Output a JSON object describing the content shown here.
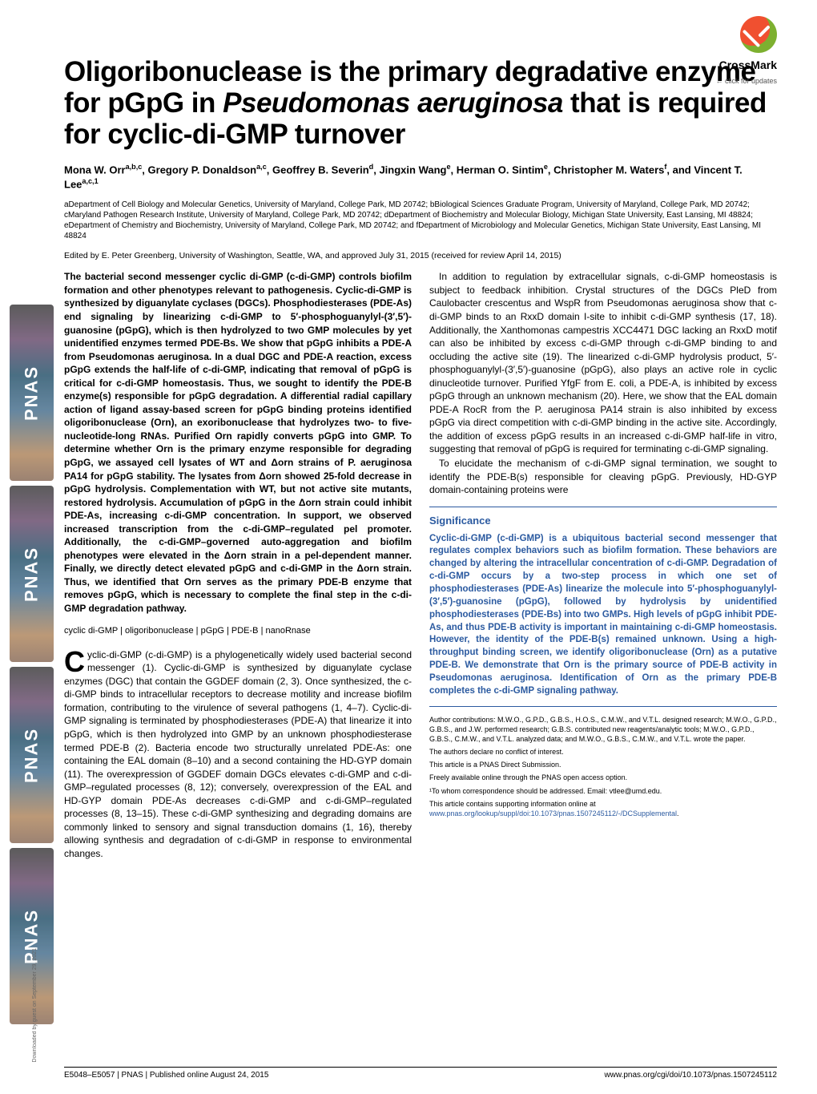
{
  "crossmark": {
    "label": "CrossMark",
    "sub": "← click for updates"
  },
  "title_plain": "Oligoribonuclease is the primary degradative enzyme for pGpG in ",
  "title_italic": "Pseudomonas aeruginosa",
  "title_tail": " that is required for cyclic-di-GMP turnover",
  "authors": {
    "a1_name": "Mona W. Orr",
    "a1_sup": "a,b,c",
    "a2_name": "Gregory P. Donaldson",
    "a2_sup": "a,c",
    "a3_name": "Geoffrey B. Severin",
    "a3_sup": "d",
    "a4_name": "Jingxin Wang",
    "a4_sup": "e",
    "a5_name": "Herman O. Sintim",
    "a5_sup": "e",
    "a6_name": "Christopher M. Waters",
    "a6_sup": "f",
    "a7_name": "Vincent T. Lee",
    "a7_sup": "a,c,1",
    "sep": ", ",
    "and": ", and "
  },
  "affiliations": "aDepartment of Cell Biology and Molecular Genetics, University of Maryland, College Park, MD 20742; bBiological Sciences Graduate Program, University of Maryland, College Park, MD 20742; cMaryland Pathogen Research Institute, University of Maryland, College Park, MD 20742; dDepartment of Biochemistry and Molecular Biology, Michigan State University, East Lansing, MI 48824; eDepartment of Chemistry and Biochemistry, University of Maryland, College Park, MD 20742; and fDepartment of Microbiology and Molecular Genetics, Michigan State University, East Lansing, MI 48824",
  "edited": "Edited by E. Peter Greenberg, University of Washington, Seattle, WA, and approved July 31, 2015 (received for review April 14, 2015)",
  "abstract": "The bacterial second messenger cyclic di-GMP (c-di-GMP) controls biofilm formation and other phenotypes relevant to pathogenesis. Cyclic-di-GMP is synthesized by diguanylate cyclases (DGCs). Phosphodiesterases (PDE-As) end signaling by linearizing c-di-GMP to 5′-phosphoguanylyl-(3′,5′)-guanosine (pGpG), which is then hydrolyzed to two GMP molecules by yet unidentified enzymes termed PDE-Bs. We show that pGpG inhibits a PDE-A from Pseudomonas aeruginosa. In a dual DGC and PDE-A reaction, excess pGpG extends the half-life of c-di-GMP, indicating that removal of pGpG is critical for c-di-GMP homeostasis. Thus, we sought to identify the PDE-B enzyme(s) responsible for pGpG degradation. A differential radial capillary action of ligand assay-based screen for pGpG binding proteins identified oligoribonuclease (Orn), an exoribonuclease that hydrolyzes two- to five-nucleotide-long RNAs. Purified Orn rapidly converts pGpG into GMP. To determine whether Orn is the primary enzyme responsible for degrading pGpG, we assayed cell lysates of WT and Δorn strains of P. aeruginosa PA14 for pGpG stability. The lysates from Δorn showed 25-fold decrease in pGpG hydrolysis. Complementation with WT, but not active site mutants, restored hydrolysis. Accumulation of pGpG in the Δorn strain could inhibit PDE-As, increasing c-di-GMP concentration. In support, we observed increased transcription from the c-di-GMP–regulated pel promoter. Additionally, the c-di-GMP–governed auto-aggregation and biofilm phenotypes were elevated in the Δorn strain in a pel-dependent manner. Finally, we directly detect elevated pGpG and c-di-GMP in the Δorn strain. Thus, we identified that Orn serves as the primary PDE-B enzyme that removes pGpG, which is necessary to complete the final step in the c-di-GMP degradation pathway.",
  "keywords": "cyclic di-GMP | oligoribonuclease | pGpG | PDE-B | nanoRnase",
  "intro_p1": "Cyclic-di-GMP (c-di-GMP) is a phylogenetically widely used bacterial second messenger (1). Cyclic-di-GMP is synthesized by diguanylate cyclase enzymes (DGC) that contain the GGDEF domain (2, 3). Once synthesized, the c-di-GMP binds to intracellular receptors to decrease motility and increase biofilm formation, contributing to the virulence of several pathogens (1, 4–7). Cyclic-di-GMP signaling is terminated by phosphodiesterases (PDE-A) that linearize it into pGpG, which is then hydrolyzed into GMP by an unknown phosphodiesterase termed PDE-B (2). Bacteria encode two structurally unrelated PDE-As: one containing the EAL domain (8–10) and a second containing the HD-GYP domain (11). The overexpression of GGDEF domain DGCs elevates c-di-GMP and c-di-GMP–regulated processes (8, 12); conversely, overexpression of the EAL and HD-GYP domain PDE-As decreases c-di-GMP and c-di-GMP–regulated processes (8, 13–15). These c-di-GMP synthesizing and degrading domains are commonly linked to sensory and signal transduction domains (1, 16), thereby allowing synthesis and degradation of c-di-GMP in response to environmental changes.",
  "right_p1": "In addition to regulation by extracellular signals, c-di-GMP homeostasis is subject to feedback inhibition. Crystal structures of the DGCs PleD from Caulobacter crescentus and WspR from Pseudomonas aeruginosa show that c-di-GMP binds to an RxxD domain I-site to inhibit c-di-GMP synthesis (17, 18). Additionally, the Xanthomonas campestris XCC4471 DGC lacking an RxxD motif can also be inhibited by excess c-di-GMP through c-di-GMP binding to and occluding the active site (19). The linearized c-di-GMP hydrolysis product, 5′-phosphoguanylyl-(3′,5′)-guanosine (pGpG), also plays an active role in cyclic dinucleotide turnover. Purified YfgF from E. coli, a PDE-A, is inhibited by excess pGpG through an unknown mechanism (20). Here, we show that the EAL domain PDE-A RocR from the P. aeruginosa PA14 strain is also inhibited by excess pGpG via direct competition with c-di-GMP binding in the active site. Accordingly, the addition of excess pGpG results in an increased c-di-GMP half-life in vitro, suggesting that removal of pGpG is required for terminating c-di-GMP signaling.",
  "right_p2": "To elucidate the mechanism of c-di-GMP signal termination, we sought to identify the PDE-B(s) responsible for cleaving pGpG. Previously, HD-GYP domain-containing proteins were",
  "significance_title": "Significance",
  "significance": "Cyclic-di-GMP (c-di-GMP) is a ubiquitous bacterial second messenger that regulates complex behaviors such as biofilm formation. These behaviors are changed by altering the intracellular concentration of c-di-GMP. Degradation of c-di-GMP occurs by a two-step process in which one set of phosphodiesterases (PDE-As) linearize the molecule into 5′-phosphoguanylyl-(3′,5′)-guanosine (pGpG), followed by hydrolysis by unidentified phosphodiesterases (PDE-Bs) into two GMPs. High levels of pGpG inhibit PDE-As, and thus PDE-B activity is important in maintaining c-di-GMP homeostasis. However, the identity of the PDE-B(s) remained unknown. Using a high-throughput binding screen, we identify oligoribonuclease (Orn) as a putative PDE-B. We demonstrate that Orn is the primary source of PDE-B activity in Pseudomonas aeruginosa. Identification of Orn as the primary PDE-B completes the c-di-GMP signaling pathway.",
  "footnotes": {
    "contrib": "Author contributions: M.W.O., G.P.D., G.B.S., H.O.S., C.M.W., and V.T.L. designed research; M.W.O., G.P.D., G.B.S., and J.W. performed research; G.B.S. contributed new reagents/analytic tools; M.W.O., G.P.D., G.B.S., C.M.W., and V.T.L. analyzed data; and M.W.O., G.B.S., C.M.W., and V.T.L. wrote the paper.",
    "conflict": "The authors declare no conflict of interest.",
    "direct": "This article is a PNAS Direct Submission.",
    "open": "Freely available online through the PNAS open access option.",
    "corr": "¹To whom correspondence should be addressed. Email: vtlee@umd.edu.",
    "supp_pre": "This article contains supporting information online at ",
    "supp_link": "www.pnas.org/lookup/suppl/doi:10.1073/pnas.1507245112/-/DCSupplemental",
    "supp_post": "."
  },
  "footer": {
    "left": "E5048–E5057  |  PNAS  |  Published online August 24, 2015",
    "right": "www.pnas.org/cgi/doi/10.1073/pnas.1507245112"
  },
  "download": "Downloaded by guest on September 29, 2021",
  "pnas_label": "PNAS"
}
